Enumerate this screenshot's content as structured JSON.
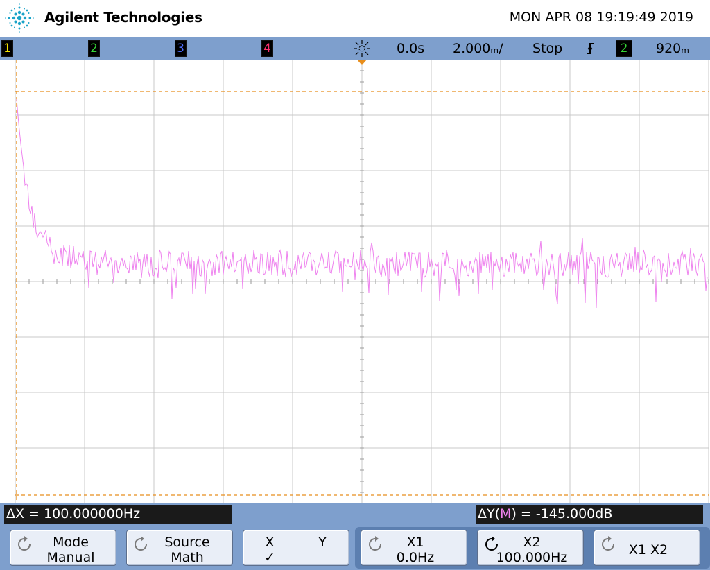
{
  "header": {
    "brand": "Agilent Technologies",
    "datetime": "MON APR 08 19:19:49 2019"
  },
  "status": {
    "channels": [
      {
        "label": "1",
        "color": "#f5e400"
      },
      {
        "label": "2",
        "color": "#35d435"
      },
      {
        "label": "3",
        "color": "#4f6fff"
      },
      {
        "label": "4",
        "color": "#ff2f6e"
      }
    ],
    "delay": "0.0s",
    "timebase": "2.000ₘ/",
    "run_state": "Stop",
    "trigger_slope_icon": "rising-edge-icon",
    "trigger_source": "2",
    "trigger_level": "920ₘ"
  },
  "display": {
    "trace_color": "#ee82ee",
    "grid_color": "#c8c8c8",
    "cursor_color": "#e88e1c",
    "divisions_x": 10,
    "divisions_y": 8,
    "trace_description": "FFT magnitude of channel 2 (math), pink trace"
  },
  "readouts": {
    "delta_x": "ΔX = 100.000000Hz",
    "delta_y_prefix": "ΔY(",
    "delta_y_source": "M",
    "delta_y_suffix": ") = -145.000dB"
  },
  "softkeys": {
    "mode": {
      "title": "Mode",
      "value": "Manual",
      "icon": "rotate-knob-icon"
    },
    "source": {
      "title": "Source",
      "value": "Math",
      "icon": "rotate-knob-icon"
    },
    "xy": {
      "x": "X",
      "y": "Y",
      "check": "✓"
    },
    "x1": {
      "title": "X1",
      "value": "0.0Hz",
      "icon": "rotate-knob-icon"
    },
    "x2": {
      "title": "X2",
      "value": "100.000Hz",
      "icon": "rotate-knob-active-icon"
    },
    "x1x2": {
      "title": "X1 X2",
      "icon": "rotate-knob-icon"
    }
  }
}
